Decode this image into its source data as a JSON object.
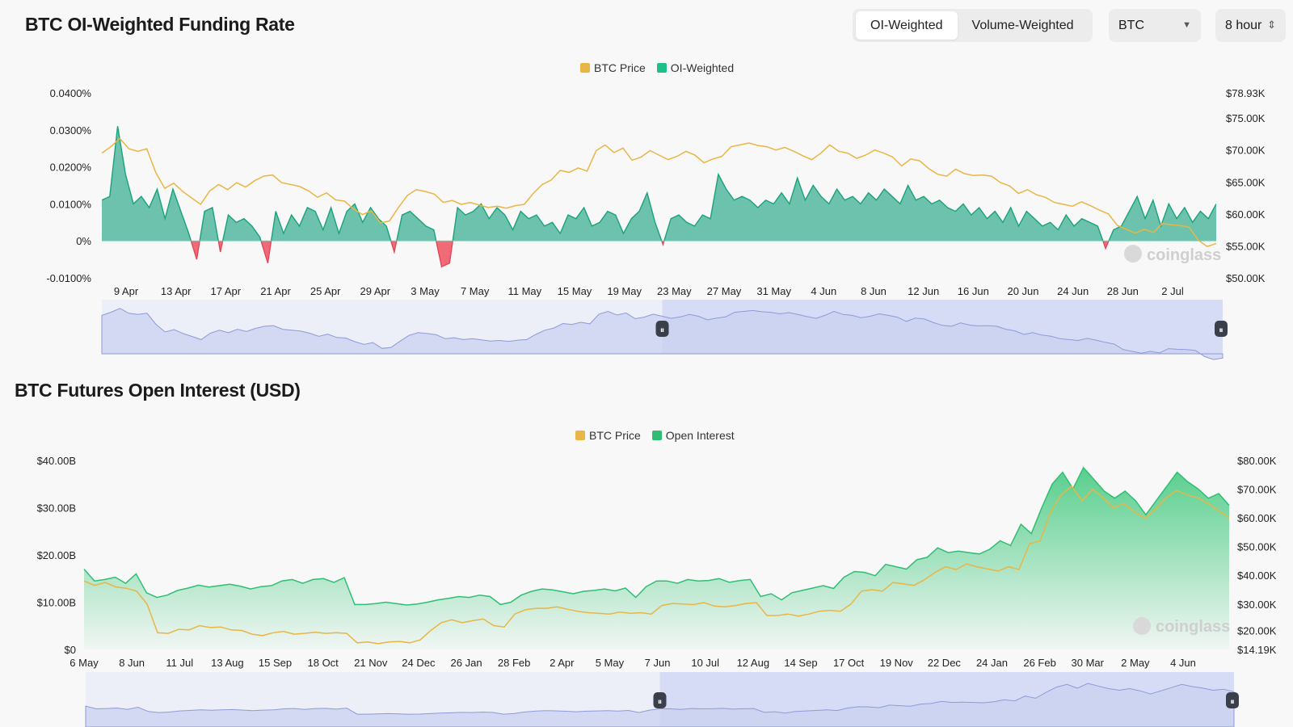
{
  "header1": {
    "title": "BTC OI-Weighted Funding Rate",
    "tabs": [
      "OI-Weighted",
      "Volume-Weighted"
    ],
    "active_tab": 0,
    "asset_select": "BTC",
    "interval_select": "8 hour"
  },
  "header2": {
    "title": "BTC Futures Open Interest (USD)"
  },
  "icons": {
    "asset_caret": "caret-down-icon",
    "interval_caret": "sort-updown-icon",
    "watermark": "coinglass-logo"
  },
  "colors": {
    "price": "#e8b645",
    "positive": "#2bb38a",
    "negative": "#ee5a6a",
    "oi": "#2ebd72",
    "navigator": "#c8d1f2"
  },
  "watermark": "coinglass",
  "chart_data": [
    {
      "type": "area",
      "legend": [
        "BTC Price",
        "OI-Weighted"
      ],
      "x_ticks": [
        "9 Apr",
        "13 Apr",
        "17 Apr",
        "21 Apr",
        "25 Apr",
        "29 Apr",
        "3 May",
        "7 May",
        "11 May",
        "15 May",
        "19 May",
        "23 May",
        "27 May",
        "31 May",
        "4 Jun",
        "8 Jun",
        "12 Jun",
        "16 Jun",
        "20 Jun",
        "24 Jun",
        "28 Jun",
        "2 Jul"
      ],
      "y_left_ticks": [
        "0.0400%",
        "0.0300%",
        "0.0200%",
        "0.0100%",
        "0%",
        "-0.0100%"
      ],
      "y_left_range": [
        -0.01,
        0.04
      ],
      "y_right_ticks": [
        "$78.93K",
        "$75.00K",
        "$70.00K",
        "$65.00K",
        "$60.00K",
        "$55.00K",
        "$50.00K"
      ],
      "y_right_range": [
        50000,
        78930
      ],
      "series": [
        {
          "name": "OI-Weighted",
          "unit": "%",
          "values": [
            0.011,
            0.012,
            0.031,
            0.018,
            0.01,
            0.012,
            0.009,
            0.014,
            0.006,
            0.014,
            0.008,
            0.002,
            -0.005,
            0.008,
            0.009,
            -0.003,
            0.007,
            0.005,
            0.006,
            0.004,
            0.001,
            -0.006,
            0.008,
            0.002,
            0.007,
            0.004,
            0.009,
            0.008,
            0.003,
            0.009,
            0.002,
            0.008,
            0.01,
            0.005,
            0.009,
            0.006,
            0.004,
            -0.003,
            0.007,
            0.008,
            0.006,
            0.004,
            0.003,
            -0.007,
            -0.006,
            0.009,
            0.007,
            0.008,
            0.01,
            0.006,
            0.009,
            0.007,
            0.003,
            0.008,
            0.006,
            0.007,
            0.004,
            0.005,
            0.002,
            0.007,
            0.006,
            0.009,
            0.004,
            0.005,
            0.008,
            0.007,
            0.002,
            0.006,
            0.008,
            0.013,
            0.005,
            -0.001,
            0.006,
            0.007,
            0.005,
            0.004,
            0.007,
            0.006,
            0.018,
            0.014,
            0.011,
            0.012,
            0.011,
            0.009,
            0.011,
            0.01,
            0.013,
            0.01,
            0.017,
            0.011,
            0.015,
            0.012,
            0.01,
            0.014,
            0.011,
            0.012,
            0.01,
            0.013,
            0.011,
            0.014,
            0.012,
            0.01,
            0.015,
            0.011,
            0.012,
            0.01,
            0.011,
            0.009,
            0.008,
            0.01,
            0.007,
            0.009,
            0.006,
            0.008,
            0.005,
            0.009,
            0.004,
            0.008,
            0.006,
            0.004,
            0.005,
            0.003,
            0.007,
            0.004,
            0.006,
            0.005,
            0.004,
            -0.002,
            0.003,
            0.004,
            0.008,
            0.012,
            0.006,
            0.011,
            0.004,
            0.01,
            0.006,
            0.009,
            0.005,
            0.008,
            0.006,
            0.01
          ]
        },
        {
          "name": "BTC Price",
          "unit": "USD",
          "values": [
            69500,
            70500,
            71800,
            70200,
            69800,
            70200,
            66500,
            64000,
            64800,
            63500,
            62500,
            61500,
            63600,
            64600,
            63800,
            64900,
            64200,
            65200,
            65900,
            66100,
            64900,
            64600,
            64300,
            63600,
            62600,
            63300,
            62200,
            62000,
            60800,
            59900,
            60500,
            58600,
            58900,
            61000,
            62900,
            63800,
            63500,
            63100,
            61800,
            62100,
            61500,
            61800,
            61400,
            61000,
            61200,
            60900,
            61300,
            61500,
            63200,
            64600,
            65300,
            66800,
            66500,
            67200,
            66700,
            69900,
            70800,
            69600,
            70300,
            68400,
            68900,
            69900,
            69200,
            68500,
            69000,
            69800,
            69200,
            68000,
            68600,
            69000,
            70500,
            70800,
            71100,
            70700,
            70500,
            70000,
            70400,
            69800,
            69100,
            68500,
            69500,
            70800,
            69800,
            69500,
            68700,
            69200,
            70000,
            69500,
            68900,
            67500,
            68600,
            68300,
            67100,
            66200,
            65900,
            67000,
            66300,
            66000,
            66100,
            65900,
            64900,
            64400,
            63200,
            63800,
            63000,
            62600,
            61800,
            61500,
            61200,
            61900,
            61300,
            60600,
            60000,
            58200,
            57600,
            57000,
            57600,
            57100,
            58500,
            58300,
            58200,
            57900,
            55900,
            54900,
            55400
          ]
        }
      ],
      "navigator_selection": [
        0.5,
        1.0
      ]
    },
    {
      "type": "area",
      "legend": [
        "BTC Price",
        "Open Interest"
      ],
      "x_ticks": [
        "6 May",
        "8 Jun",
        "11 Jul",
        "13 Aug",
        "15 Sep",
        "18 Oct",
        "21 Nov",
        "24 Dec",
        "26 Jan",
        "28 Feb",
        "2 Apr",
        "5 May",
        "7 Jun",
        "10 Jul",
        "12 Aug",
        "14 Sep",
        "17 Oct",
        "19 Nov",
        "22 Dec",
        "24 Jan",
        "26 Feb",
        "30 Mar",
        "2 May",
        "4 Jun"
      ],
      "y_left_ticks": [
        "$40.00B",
        "$30.00B",
        "$20.00B",
        "$10.00B",
        "$0"
      ],
      "y_left_range": [
        0,
        40
      ],
      "y_right_ticks": [
        "$80.00K",
        "$70.00K",
        "$60.00K",
        "$50.00K",
        "$40.00K",
        "$30.00K",
        "$20.00K",
        "$14.19K"
      ],
      "y_right_range": [
        14190,
        80000
      ],
      "series": [
        {
          "name": "Open Interest",
          "unit": "USD B",
          "values": [
            17,
            14.5,
            14.8,
            15.3,
            14,
            16,
            12,
            11,
            11.5,
            12.5,
            13,
            13.6,
            13.2,
            13.5,
            13.8,
            13.4,
            12.8,
            13.3,
            13.5,
            14.5,
            14.8,
            14,
            14.8,
            15,
            14.2,
            15.2,
            9.5,
            9.5,
            9.7,
            10,
            9.7,
            9.4,
            9.6,
            10,
            10.5,
            10.8,
            11.2,
            11,
            11.5,
            11.2,
            9.5,
            10,
            11.5,
            12.3,
            12.8,
            12.6,
            12.2,
            11.8,
            12.3,
            12.5,
            12.8,
            12.4,
            13,
            11,
            13.3,
            14.5,
            14.5,
            14,
            14.8,
            14.5,
            14.6,
            15,
            14.2,
            14.6,
            14.8,
            11.2,
            11.8,
            10.5,
            12,
            12.5,
            13,
            13.5,
            12.9,
            15.3,
            16.5,
            16.3,
            15.6,
            18,
            17.5,
            17,
            19,
            19.5,
            21.5,
            20.5,
            20.8,
            20.5,
            20.2,
            21.2,
            23,
            22,
            26.5,
            24.5,
            30,
            35,
            37.5,
            34,
            38.5,
            36,
            33.5,
            32,
            33.5,
            31.5,
            28.5,
            31.5,
            34.5,
            37.5,
            35.5,
            34,
            32,
            33,
            30.5
          ]
        },
        {
          "name": "BTC Price",
          "unit": "USD",
          "values": [
            38000,
            36500,
            37500,
            36000,
            35500,
            34500,
            30000,
            20000,
            19800,
            21200,
            21000,
            22500,
            21800,
            22000,
            21000,
            20800,
            19500,
            19000,
            20000,
            20500,
            19500,
            19800,
            20200,
            19800,
            20000,
            19800,
            16500,
            16800,
            16200,
            16800,
            17000,
            16500,
            17500,
            20800,
            23500,
            24500,
            23500,
            24200,
            24800,
            22500,
            22000,
            26500,
            28000,
            28500,
            28500,
            29000,
            28200,
            27500,
            27000,
            26800,
            26500,
            27200,
            26800,
            27000,
            26500,
            29500,
            30200,
            30000,
            29800,
            30500,
            29300,
            29000,
            29500,
            30200,
            30500,
            26000,
            26000,
            26500,
            25800,
            26500,
            27500,
            27800,
            27500,
            30000,
            34500,
            35000,
            34500,
            37500,
            37000,
            36500,
            38500,
            41000,
            43000,
            42000,
            44000,
            43000,
            42200,
            41500,
            43000,
            42000,
            51000,
            52000,
            62000,
            68000,
            71000,
            66000,
            70000,
            67000,
            63500,
            65000,
            62000,
            60000,
            63000,
            67000,
            69500,
            68000,
            67000,
            65000,
            62500,
            60000
          ]
        }
      ],
      "navigator_selection": [
        0.5,
        1.0
      ]
    }
  ]
}
